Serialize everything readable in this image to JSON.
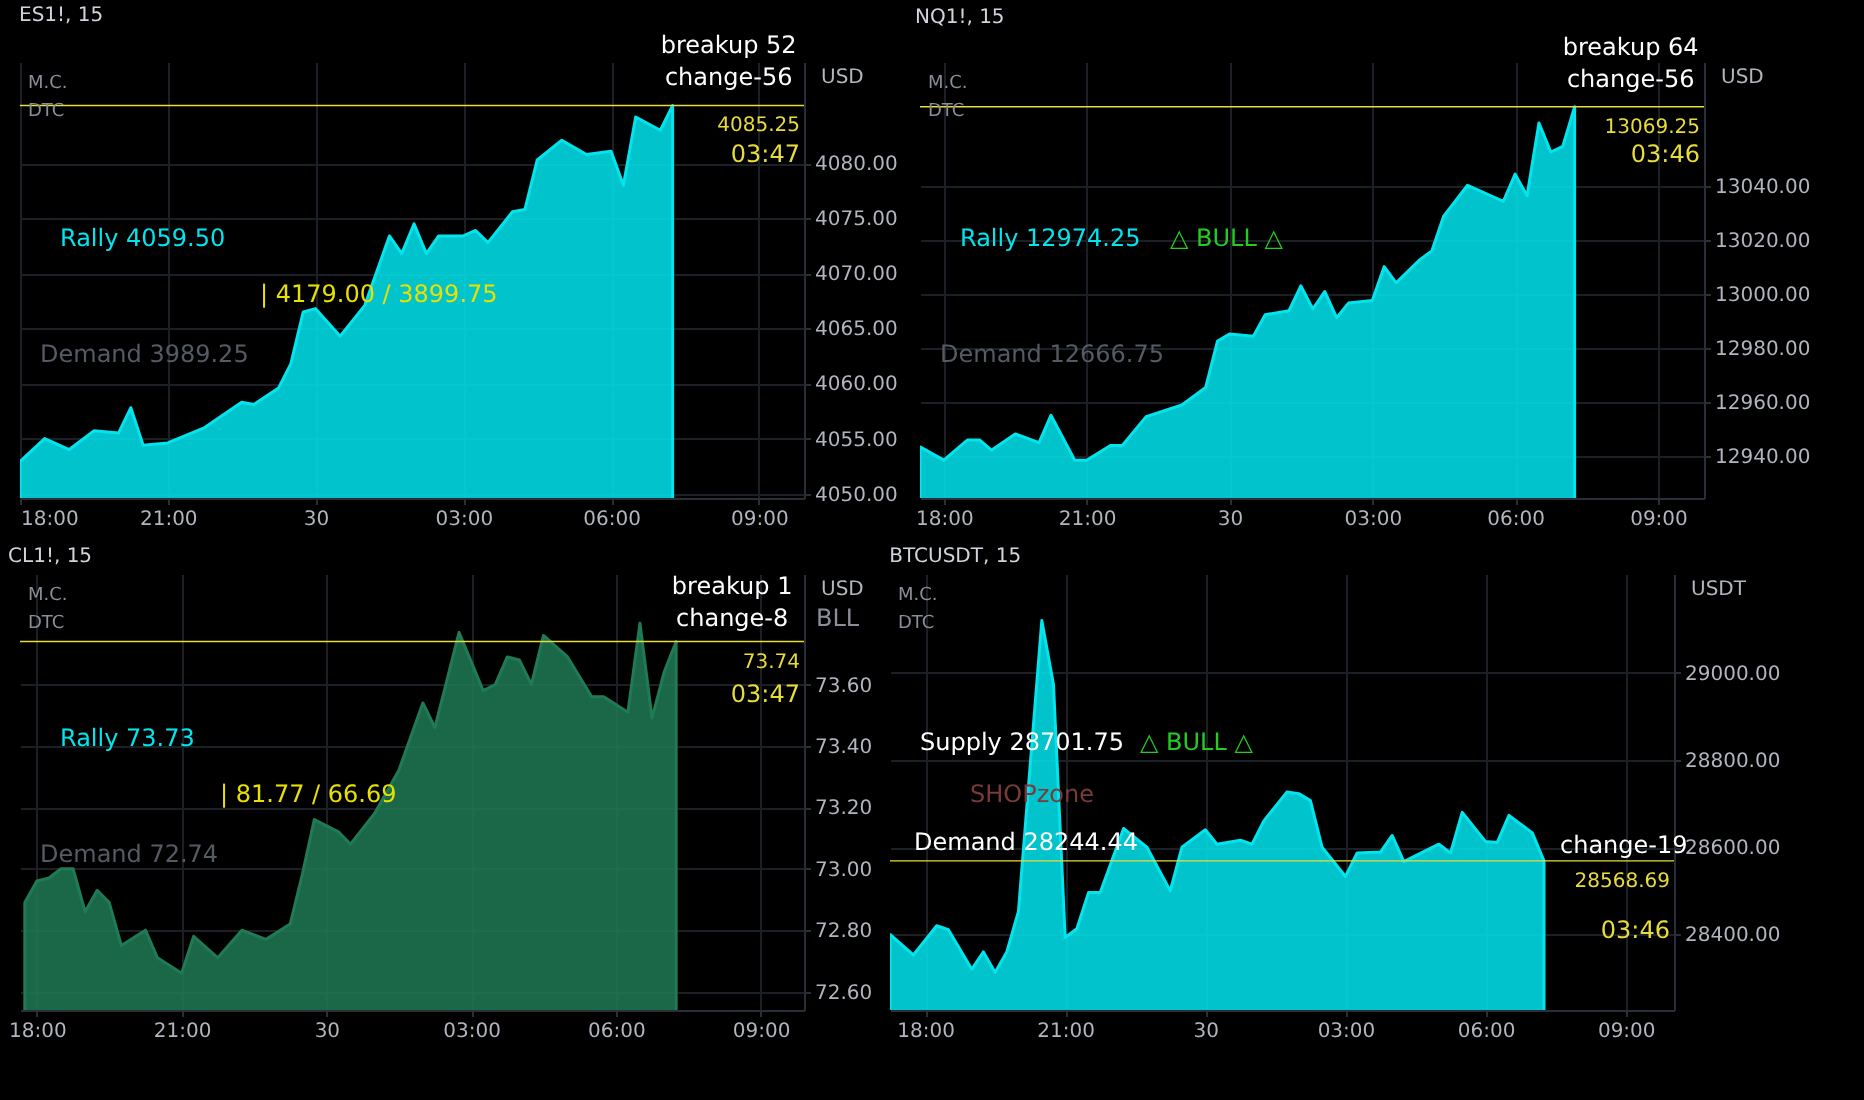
{
  "chart_data": [
    {
      "type": "area",
      "title": "ES1!, 15",
      "ylabel": "USD",
      "grid": true,
      "x": [
        "--03-29T18:00",
        "--03-29T18:30",
        "--03-29T19:00",
        "--03-29T19:30",
        "--03-29T20:00",
        "--03-29T20:15",
        "--03-29T20:30",
        "--03-29T21:00",
        "--03-29T21:45",
        "--03-29T22:30",
        "--03-29T22:45",
        "--03-29T23:15",
        "--03-29T23:30",
        "--03-29T23:45",
        "--03-30T00:00",
        "--03-30T00:30",
        "--03-30T01:00",
        "--03-30T01:30",
        "--03-30T01:45",
        "--03-30T02:00",
        "--03-30T02:15",
        "--03-30T02:30",
        "--03-30T03:00",
        "--03-30T03:15",
        "--03-30T03:30",
        "--03-30T04:00",
        "--03-30T04:15",
        "--03-30T04:30",
        "--03-30T05:00",
        "--03-30T05:30",
        "--03-30T06:00",
        "--03-30T06:15",
        "--03-30T06:30",
        "--03-30T07:00",
        "--03-30T07:15"
      ],
      "series": [
        {
          "color": "#00e5ee",
          "values": [
            4052.9,
            4055.0,
            4054.0,
            4055.7,
            4055.5,
            4057.8,
            4054.4,
            4054.6,
            4056.0,
            4058.3,
            4058.1,
            4059.6,
            4061.8,
            4066.5,
            4066.8,
            4064.3,
            4067.1,
            4073.4,
            4071.8,
            4074.5,
            4071.8,
            4073.4,
            4073.4,
            4073.9,
            4072.8,
            4075.6,
            4075.8,
            4080.3,
            4082.1,
            4080.8,
            4081.1,
            4078.0,
            4084.2,
            4083.0,
            4085.25
          ]
        }
      ],
      "xlim": [
        "--03-29T18:00",
        "--03-30T09:55"
      ],
      "ylim": [
        4049.6,
        4089.2
      ],
      "xticks": [
        {
          "value": "--03-29T18:00",
          "label": "18:00"
        },
        {
          "value": "--03-29T21:00",
          "label": "21:00"
        },
        {
          "value": "--03-30T00:00",
          "label": "30"
        },
        {
          "value": "--03-30T03:00",
          "label": "03:00"
        },
        {
          "value": "--03-30T06:00",
          "label": "06:00"
        },
        {
          "value": "--03-30T09:00",
          "label": "09:00"
        }
      ],
      "yticks": [
        {
          "value": 4050,
          "label": "4050.00"
        },
        {
          "value": 4055,
          "label": "4055.00"
        },
        {
          "value": 4060,
          "label": "4060.00"
        },
        {
          "value": 4065,
          "label": "4065.00"
        },
        {
          "value": 4070,
          "label": "4070.00"
        },
        {
          "value": 4075,
          "label": "4075.00"
        },
        {
          "value": 4080,
          "label": "4080.00"
        }
      ],
      "ref_lines": [
        {
          "axis": "y",
          "value": 4085.25,
          "label": "4085.25",
          "color": "#e8dc3c"
        }
      ],
      "annotations": [
        "M.C.",
        "DTC",
        "Rally  4059.50",
        "|  4179.00 / 3899.75",
        "Demand  3989.25",
        {
          "text": "breakup 52",
          "x": "--03-30T07:15",
          "y": 4085.25
        },
        {
          "text": "change-56",
          "x": "--03-30T07:15",
          "y": 4085.25
        },
        "03:47"
      ]
    },
    {
      "type": "area",
      "title": "NQ1!, 15",
      "ylabel": "USD",
      "grid": true,
      "x": [
        "--03-29T17:30",
        "--03-29T18:00",
        "--03-29T18:30",
        "--03-29T18:45",
        "--03-29T19:00",
        "--03-29T19:30",
        "--03-29T20:00",
        "--03-29T20:15",
        "--03-29T20:45",
        "--03-29T21:00",
        "--03-29T21:30",
        "--03-29T21:45",
        "--03-29T22:15",
        "--03-29T23:00",
        "--03-29T23:30",
        "--03-29T23:45",
        "--03-30T00:00",
        "--03-30T00:30",
        "--03-30T00:45",
        "--03-30T01:15",
        "--03-30T01:30",
        "--03-30T01:45",
        "--03-30T02:00",
        "--03-30T02:15",
        "--03-30T02:30",
        "--03-30T03:00",
        "--03-30T03:15",
        "--03-30T03:30",
        "--03-30T04:00",
        "--03-30T04:15",
        "--03-30T04:30",
        "--03-30T05:00",
        "--03-30T05:45",
        "--03-30T06:00",
        "--03-30T06:15",
        "--03-30T06:30",
        "--03-30T06:45",
        "--03-30T07:00",
        "--03-30T07:15"
      ],
      "series": [
        {
          "color": "#00e5ee",
          "values": [
            12943.4,
            12938.5,
            12946.0,
            12946.0,
            12942.2,
            12948.2,
            12945.0,
            12955.1,
            12938.5,
            12938.5,
            12943.9,
            12943.9,
            12954.6,
            12958.9,
            12965.4,
            12982.6,
            12985.2,
            12984.3,
            12992.3,
            12993.8,
            13003.0,
            12994.4,
            13000.9,
            12991.2,
            12996.6,
            12997.6,
            13010.1,
            13004.1,
            13012.7,
            13015.9,
            13028.8,
            13040.2,
            13034.2,
            13044.3,
            13036.3,
            13063.2,
            13052.5,
            13054.6,
            13069.25
          ]
        }
      ],
      "xlim": [
        "--03-29T17:30",
        "--03-30T09:58"
      ],
      "ylim": [
        12924.5,
        13085.8
      ],
      "xticks": [
        {
          "value": "--03-29T18:00",
          "label": "18:00"
        },
        {
          "value": "--03-29T21:00",
          "label": "21:00"
        },
        {
          "value": "--03-30T00:00",
          "label": "30"
        },
        {
          "value": "--03-30T03:00",
          "label": "03:00"
        },
        {
          "value": "--03-30T06:00",
          "label": "06:00"
        },
        {
          "value": "--03-30T09:00",
          "label": "09:00"
        }
      ],
      "yticks": [
        {
          "value": 12940,
          "label": "12940.00"
        },
        {
          "value": 12960,
          "label": "12960.00"
        },
        {
          "value": 12980,
          "label": "12980.00"
        },
        {
          "value": 13000,
          "label": "13000.00"
        },
        {
          "value": 13020,
          "label": "13020.00"
        },
        {
          "value": 13040,
          "label": "13040.00"
        }
      ],
      "ref_lines": [
        {
          "axis": "y",
          "value": 13069.25,
          "label": "13069.25",
          "color": "#e8dc3c"
        }
      ],
      "annotations": [
        "M.C.",
        "DTC",
        "Rally  12974.25",
        "△ BULL △",
        "Demand  12666.75",
        {
          "text": "breakup 64",
          "x": "--03-30T07:15",
          "y": 13069.25
        },
        {
          "text": "change-56",
          "x": "--03-30T07:15",
          "y": 13069.25
        },
        "03:46"
      ]
    },
    {
      "type": "area",
      "title": "CL1!, 15",
      "ylabel": "USD",
      "grid": true,
      "x": [
        "--03-29T17:45",
        "--03-29T18:00",
        "--03-29T18:15",
        "--03-29T18:30",
        "--03-29T18:45",
        "--03-29T19:00",
        "--03-29T19:15",
        "--03-29T19:30",
        "--03-29T19:45",
        "--03-29T20:15",
        "--03-29T20:30",
        "--03-29T21:00",
        "--03-29T21:15",
        "--03-29T21:45",
        "--03-29T22:15",
        "--03-29T22:45",
        "--03-29T23:15",
        "--03-29T23:30",
        "--03-29T23:45",
        "--03-30T00:15",
        "--03-30T00:30",
        "--03-30T01:00",
        "--03-30T01:30",
        "--03-30T02:00",
        "--03-30T02:15",
        "--03-30T02:45",
        "--03-30T03:15",
        "--03-30T03:30",
        "--03-30T03:45",
        "--03-30T04:00",
        "--03-30T04:15",
        "--03-30T04:30",
        "--03-30T05:00",
        "--03-30T05:30",
        "--03-30T05:45",
        "--03-30T06:15",
        "--03-30T06:30",
        "--03-30T06:45",
        "--03-30T07:00",
        "--03-30T07:15"
      ],
      "series": [
        {
          "color": "#1f7a55",
          "values": [
            72.89,
            72.96,
            72.97,
            73.0,
            73.0,
            72.86,
            72.93,
            72.89,
            72.75,
            72.8,
            72.71,
            72.66,
            72.78,
            72.71,
            72.8,
            72.77,
            72.82,
            72.98,
            73.16,
            73.12,
            73.08,
            73.18,
            73.32,
            73.54,
            73.46,
            73.77,
            73.58,
            73.6,
            73.69,
            73.68,
            73.6,
            73.76,
            73.69,
            73.56,
            73.56,
            73.51,
            73.8,
            73.49,
            73.64,
            73.74
          ]
        }
      ],
      "xlim": [
        "--03-29T17:39",
        "--03-30T09:54"
      ],
      "ylim": [
        72.54,
        73.96
      ],
      "xticks": [
        {
          "value": "--03-29T18:00",
          "label": "18:00"
        },
        {
          "value": "--03-29T21:00",
          "label": "21:00"
        },
        {
          "value": "--03-30T00:00",
          "label": "30"
        },
        {
          "value": "--03-30T03:00",
          "label": "03:00"
        },
        {
          "value": "--03-30T06:00",
          "label": "06:00"
        },
        {
          "value": "--03-30T09:00",
          "label": "09:00"
        }
      ],
      "yticks": [
        {
          "value": 72.6,
          "label": "72.60"
        },
        {
          "value": 72.8,
          "label": "72.80"
        },
        {
          "value": 73,
          "label": "73.00"
        },
        {
          "value": 73.2,
          "label": "73.20"
        },
        {
          "value": 73.4,
          "label": "73.40"
        },
        {
          "value": 73.6,
          "label": "73.60"
        }
      ],
      "ref_lines": [
        {
          "axis": "y",
          "value": 73.74,
          "label": "73.74",
          "color": "#e8dc3c"
        }
      ],
      "annotations": [
        "M.C.",
        "DTC",
        "BLL",
        "Rally  73.73",
        "|  81.77 / 66.69",
        "Demand  72.74",
        {
          "text": "breakup 1",
          "x": "--03-30T07:15",
          "y": 73.74
        },
        {
          "text": "change-8",
          "x": "--03-30T07:15",
          "y": 73.74
        },
        "03:47"
      ]
    },
    {
      "type": "area",
      "title": "BTCUSDT, 15",
      "ylabel": "USDT",
      "grid": true,
      "x": [
        "--03-29T17:15",
        "--03-29T17:45",
        "--03-29T18:15",
        "--03-29T18:30",
        "--03-29T19:00",
        "--03-29T19:15",
        "--03-29T19:30",
        "--03-29T19:45",
        "--03-29T20:00",
        "--03-29T20:30",
        "--03-29T20:45",
        "--03-29T21:00",
        "--03-29T21:15",
        "--03-29T21:30",
        "--03-29T21:45",
        "--03-29T22:15",
        "--03-29T22:45",
        "--03-29T23:15",
        "--03-29T23:30",
        "--03-30T00:00",
        "--03-30T00:15",
        "--03-30T00:45",
        "--03-30T01:00",
        "--03-30T01:15",
        "--03-30T01:45",
        "--03-30T02:00",
        "--03-30T02:15",
        "--03-30T02:30",
        "--03-30T03:00",
        "--03-30T03:15",
        "--03-30T03:45",
        "--03-30T04:00",
        "--03-30T04:15",
        "--03-30T05:00",
        "--03-30T05:15",
        "--03-30T05:30",
        "--03-30T06:00",
        "--03-30T06:15",
        "--03-30T06:30",
        "--03-30T07:00",
        "--03-30T07:15"
      ],
      "series": [
        {
          "color": "#00e5ee",
          "values": [
            28400,
            28353,
            28420,
            28411,
            28320,
            28360,
            28313,
            28360,
            28453,
            29120,
            28973,
            28393,
            28413,
            28496,
            28496,
            28643,
            28600,
            28500,
            28600,
            28640,
            28607,
            28616,
            28607,
            28660,
            28727,
            28723,
            28707,
            28600,
            28533,
            28587,
            28589,
            28627,
            28567,
            28607,
            28587,
            28680,
            28613,
            28611,
            28673,
            28633,
            28568.69
          ]
        }
      ],
      "xlim": [
        "--03-29T17:15",
        "--03-30T10:02"
      ],
      "ylim": [
        28226.7,
        29226.7
      ],
      "xticks": [
        {
          "value": "--03-29T18:00",
          "label": "18:00"
        },
        {
          "value": "--03-29T21:00",
          "label": "21:00"
        },
        {
          "value": "--03-30T00:00",
          "label": "30"
        },
        {
          "value": "--03-30T03:00",
          "label": "03:00"
        },
        {
          "value": "--03-30T06:00",
          "label": "06:00"
        },
        {
          "value": "--03-30T09:00",
          "label": "09:00"
        }
      ],
      "yticks": [
        {
          "value": 28400,
          "label": "28400.00"
        },
        {
          "value": 28600,
          "label": "28600.00"
        },
        {
          "value": 28800,
          "label": "28800.00"
        },
        {
          "value": 29000,
          "label": "29000.00"
        }
      ],
      "ref_lines": [
        {
          "axis": "y",
          "value": 28568.69,
          "label": "28568.69",
          "color": "#e8dc3c"
        }
      ],
      "annotations": [
        "M.C.",
        "DTC",
        "Supply  28701.75",
        "△ BULL △",
        "SHOPzone",
        "Demand  28244.44",
        {
          "text": "change-19",
          "x": "--03-30T07:15",
          "y": 28568.69
        },
        "03:46"
      ]
    }
  ]
}
